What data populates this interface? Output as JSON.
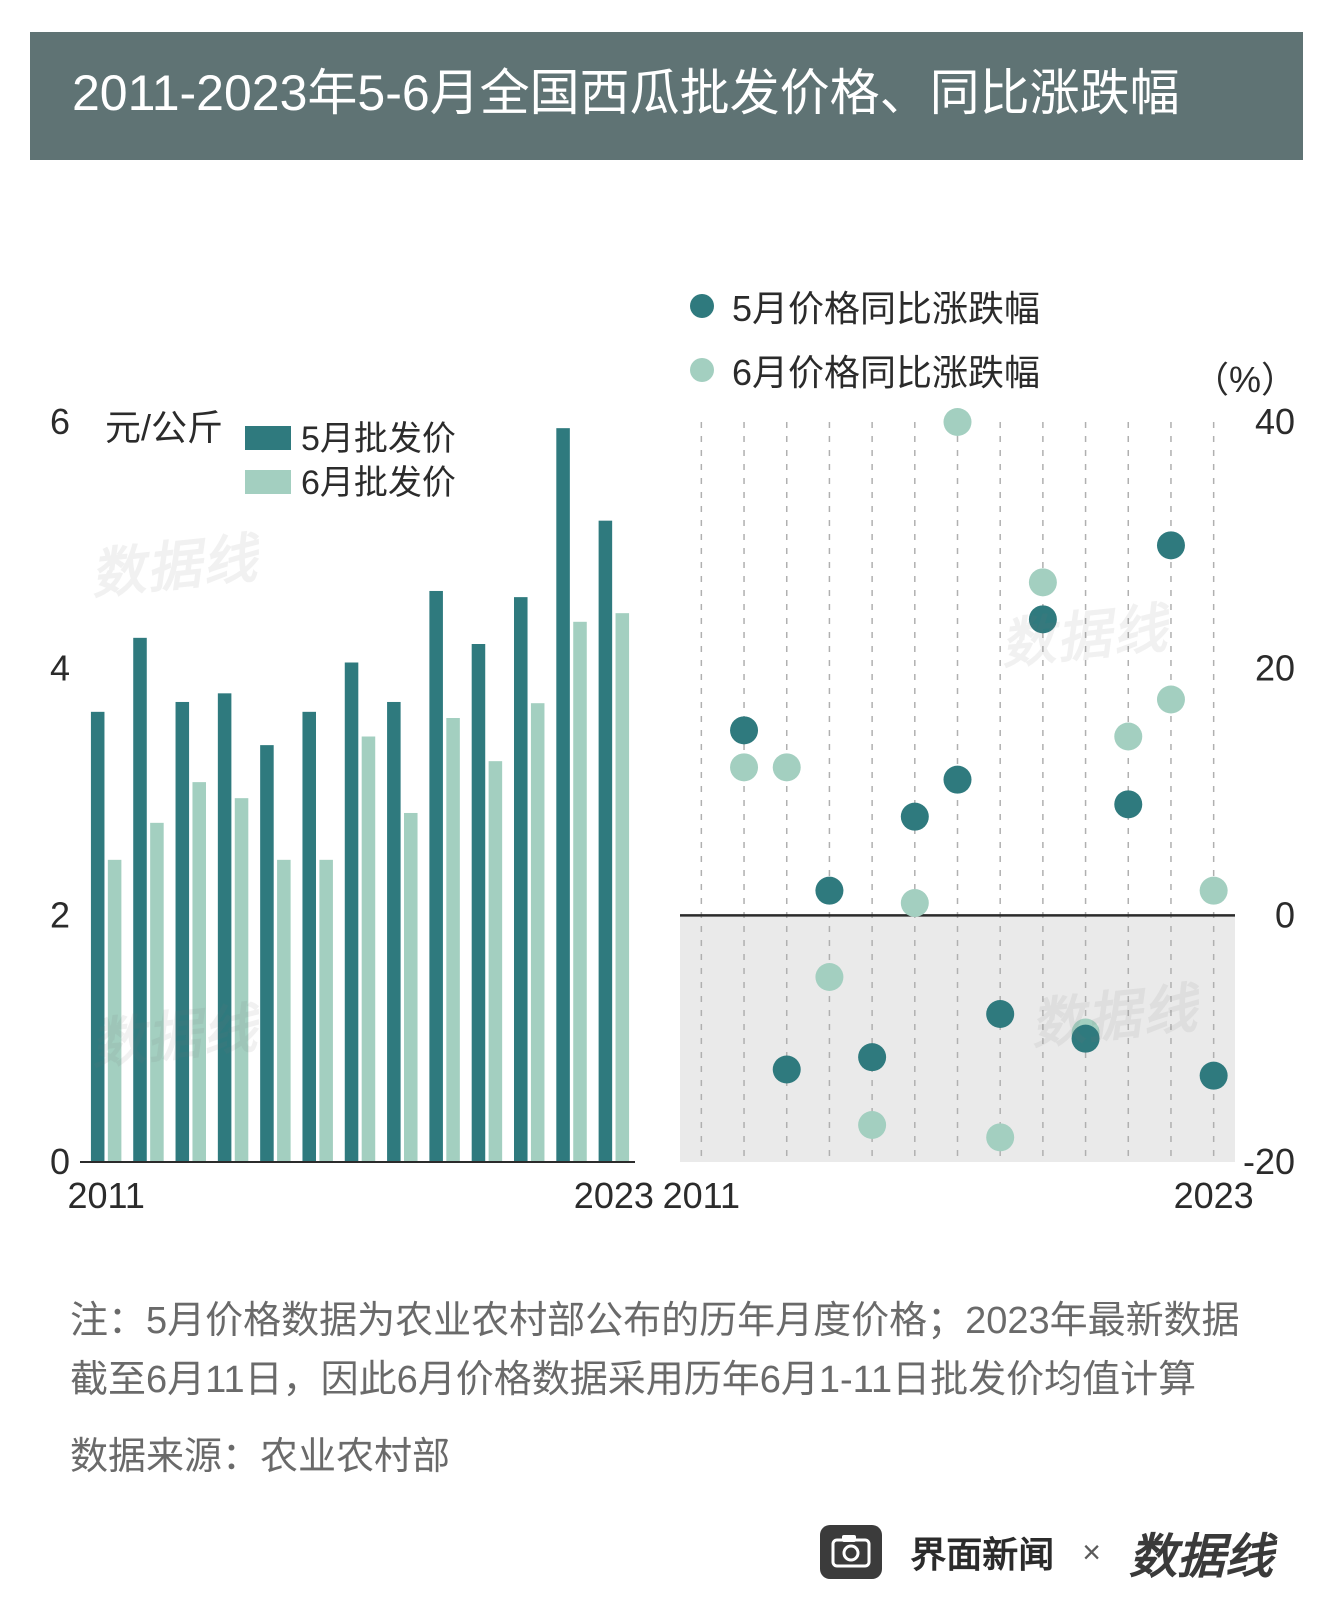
{
  "title": "2011-2023年5-6月全国西瓜批发价格、同比涨跌幅",
  "legend_scatter": {
    "may": "5月价格同比涨跌幅",
    "jun": "6月价格同比涨跌幅"
  },
  "legend_bar": {
    "may": "5月批发价",
    "jun": "6月批发价"
  },
  "colors": {
    "series_may_dark": "#2f7a7e",
    "series_jun_light": "#a3cfc0",
    "axis": "#2b2b2b",
    "grid_dash": "#b0b0b0",
    "negative_bg": "#eaeaea",
    "text": "#2b2b2b",
    "footnote": "#6a6a6a",
    "title_bg": "#5f7374",
    "title_fg": "#ffffff"
  },
  "bar_chart": {
    "type": "grouped-bar",
    "y_unit_label": "元/公斤",
    "ylim": [
      0,
      6
    ],
    "yticks": [
      0,
      2,
      4,
      6
    ],
    "years": [
      2011,
      2012,
      2013,
      2014,
      2015,
      2016,
      2017,
      2018,
      2019,
      2020,
      2021,
      2022,
      2023
    ],
    "x_tick_labels": {
      "first": "2011",
      "last": "2023"
    },
    "may_values": [
      3.65,
      4.25,
      3.73,
      3.8,
      3.38,
      3.65,
      4.05,
      3.73,
      4.63,
      4.2,
      4.58,
      5.95,
      5.2
    ],
    "jun_values": [
      2.45,
      2.75,
      3.08,
      2.95,
      2.45,
      2.45,
      3.45,
      2.83,
      3.6,
      3.25,
      3.72,
      4.38,
      4.45
    ],
    "bar_width_ratio": 0.32,
    "group_gap_ratio": 0.08,
    "title_fontsize": 36,
    "tick_fontsize": 36
  },
  "scatter_chart": {
    "type": "scatter",
    "y_unit_label": "（%）",
    "ylim": [
      -20,
      40
    ],
    "yticks": [
      -20,
      0,
      20,
      40
    ],
    "years": [
      2011,
      2012,
      2013,
      2014,
      2015,
      2016,
      2017,
      2018,
      2019,
      2020,
      2021,
      2022,
      2023
    ],
    "x_tick_labels": {
      "first": "2011",
      "last": "2023"
    },
    "may_values": [
      null,
      15.0,
      -12.5,
      2.0,
      -11.5,
      8.0,
      11.0,
      -8.0,
      24.0,
      -10.0,
      9.0,
      30.0,
      -13.0
    ],
    "jun_values": [
      null,
      12.0,
      12.0,
      -5.0,
      -17.0,
      1.0,
      40.0,
      -18.0,
      27.0,
      -9.5,
      14.5,
      17.5,
      2.0
    ],
    "point_radius": 14,
    "tick_fontsize": 36
  },
  "footnote": "注：5月价格数据为农业农村部公布的历年月度价格；2023年最新数据截至6月11日，因此6月价格数据采用历年6月1-11日批发价均值计算",
  "source_label": "数据来源：农业农村部",
  "footer": {
    "jiemian": "界面新闻",
    "sep": "×",
    "datawire": "数据线"
  },
  "watermark_text": "数据线"
}
